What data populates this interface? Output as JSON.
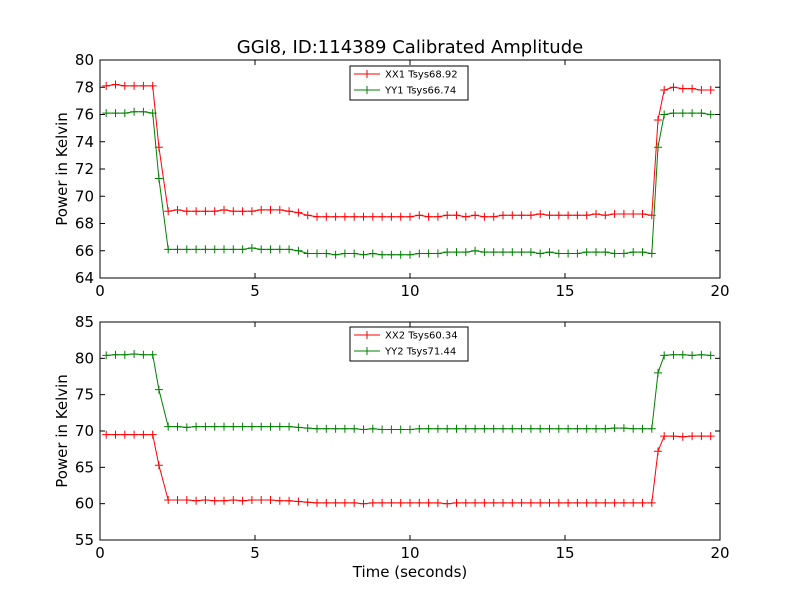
{
  "chart_data": [
    {
      "type": "line",
      "title": "GGl8, ID:114389 Calibrated Amplitude",
      "xlabel": "",
      "ylabel": "Power in Kelvin",
      "xlim": [
        0,
        20
      ],
      "ylim": [
        64,
        80
      ],
      "xticks": [
        "0",
        "5",
        "10",
        "15",
        "20"
      ],
      "yticks": [
        "64",
        "66",
        "68",
        "70",
        "72",
        "74",
        "76",
        "78",
        "80"
      ],
      "grid": false,
      "legend_position": "top-center",
      "x": [
        0.2,
        0.5,
        0.8,
        1.1,
        1.4,
        1.7,
        1.9,
        2.2,
        2.5,
        2.8,
        3.1,
        3.4,
        3.7,
        4.0,
        4.3,
        4.6,
        4.9,
        5.2,
        5.5,
        5.8,
        6.1,
        6.4,
        6.7,
        7.0,
        7.3,
        7.6,
        7.9,
        8.2,
        8.5,
        8.8,
        9.1,
        9.4,
        9.7,
        10.0,
        10.3,
        10.6,
        10.9,
        11.2,
        11.5,
        11.8,
        12.1,
        12.4,
        12.7,
        13.0,
        13.3,
        13.6,
        13.9,
        14.2,
        14.5,
        14.8,
        15.1,
        15.4,
        15.7,
        16.0,
        16.3,
        16.6,
        16.9,
        17.2,
        17.5,
        17.8,
        18.0,
        18.2,
        18.5,
        18.8,
        19.1,
        19.4,
        19.7
      ],
      "series": [
        {
          "name": "XX1 Tsys68.92",
          "color": "#ff0000",
          "values": [
            78.1,
            78.2,
            78.1,
            78.1,
            78.1,
            78.1,
            73.6,
            68.9,
            69.0,
            68.9,
            68.9,
            68.9,
            68.9,
            69.0,
            68.9,
            68.9,
            68.9,
            69.0,
            69.0,
            69.0,
            68.9,
            68.8,
            68.6,
            68.5,
            68.5,
            68.5,
            68.5,
            68.5,
            68.5,
            68.5,
            68.5,
            68.5,
            68.5,
            68.5,
            68.6,
            68.5,
            68.5,
            68.6,
            68.6,
            68.5,
            68.6,
            68.5,
            68.5,
            68.6,
            68.6,
            68.6,
            68.6,
            68.7,
            68.6,
            68.6,
            68.6,
            68.6,
            68.6,
            68.7,
            68.6,
            68.7,
            68.7,
            68.7,
            68.7,
            68.6,
            75.6,
            77.8,
            78.0,
            77.9,
            77.9,
            77.8,
            77.8
          ]
        },
        {
          "name": "YY1 Tsys66.74",
          "color": "#008000",
          "values": [
            76.1,
            76.1,
            76.1,
            76.2,
            76.2,
            76.1,
            71.3,
            66.1,
            66.1,
            66.1,
            66.1,
            66.1,
            66.1,
            66.1,
            66.1,
            66.1,
            66.2,
            66.1,
            66.1,
            66.1,
            66.1,
            66.0,
            65.8,
            65.8,
            65.8,
            65.7,
            65.8,
            65.8,
            65.7,
            65.8,
            65.7,
            65.7,
            65.7,
            65.7,
            65.8,
            65.8,
            65.8,
            65.9,
            65.9,
            65.9,
            66.0,
            65.9,
            65.9,
            65.9,
            65.9,
            65.9,
            65.9,
            65.8,
            65.9,
            65.8,
            65.8,
            65.8,
            65.9,
            65.9,
            65.9,
            65.8,
            65.8,
            65.9,
            65.9,
            65.8,
            73.6,
            76.0,
            76.1,
            76.1,
            76.1,
            76.1,
            76.0
          ]
        }
      ]
    },
    {
      "type": "line",
      "title": "",
      "xlabel": "Time (seconds)",
      "ylabel": "Power in Kelvin",
      "xlim": [
        0,
        20
      ],
      "ylim": [
        55,
        85
      ],
      "xticks": [
        "0",
        "5",
        "10",
        "15",
        "20"
      ],
      "yticks": [
        "55",
        "60",
        "65",
        "70",
        "75",
        "80",
        "85"
      ],
      "grid": false,
      "legend_position": "top-center",
      "x": [
        0.2,
        0.5,
        0.8,
        1.1,
        1.4,
        1.7,
        1.9,
        2.2,
        2.5,
        2.8,
        3.1,
        3.4,
        3.7,
        4.0,
        4.3,
        4.6,
        4.9,
        5.2,
        5.5,
        5.8,
        6.1,
        6.4,
        6.7,
        7.0,
        7.3,
        7.6,
        7.9,
        8.2,
        8.5,
        8.8,
        9.1,
        9.4,
        9.7,
        10.0,
        10.3,
        10.6,
        10.9,
        11.2,
        11.5,
        11.8,
        12.1,
        12.4,
        12.7,
        13.0,
        13.3,
        13.6,
        13.9,
        14.2,
        14.5,
        14.8,
        15.1,
        15.4,
        15.7,
        16.0,
        16.3,
        16.6,
        16.9,
        17.2,
        17.5,
        17.8,
        18.0,
        18.2,
        18.5,
        18.8,
        19.1,
        19.4,
        19.7
      ],
      "series": [
        {
          "name": "XX2 Tsys60.34",
          "color": "#ff0000",
          "values": [
            69.5,
            69.5,
            69.5,
            69.5,
            69.5,
            69.5,
            65.3,
            60.5,
            60.5,
            60.5,
            60.4,
            60.5,
            60.4,
            60.4,
            60.5,
            60.4,
            60.5,
            60.5,
            60.5,
            60.4,
            60.4,
            60.3,
            60.2,
            60.1,
            60.1,
            60.1,
            60.1,
            60.1,
            60.0,
            60.1,
            60.1,
            60.1,
            60.1,
            60.1,
            60.1,
            60.1,
            60.1,
            60.0,
            60.1,
            60.1,
            60.1,
            60.1,
            60.1,
            60.1,
            60.1,
            60.1,
            60.1,
            60.1,
            60.1,
            60.1,
            60.1,
            60.1,
            60.1,
            60.1,
            60.1,
            60.1,
            60.1,
            60.1,
            60.1,
            60.1,
            67.2,
            69.3,
            69.3,
            69.2,
            69.3,
            69.3,
            69.3
          ]
        },
        {
          "name": "YY2 Tsys71.44",
          "color": "#008000",
          "values": [
            80.4,
            80.5,
            80.5,
            80.6,
            80.5,
            80.5,
            75.7,
            70.6,
            70.6,
            70.5,
            70.6,
            70.6,
            70.6,
            70.6,
            70.6,
            70.6,
            70.6,
            70.6,
            70.6,
            70.6,
            70.6,
            70.5,
            70.4,
            70.3,
            70.3,
            70.3,
            70.3,
            70.3,
            70.2,
            70.3,
            70.2,
            70.2,
            70.2,
            70.2,
            70.3,
            70.3,
            70.3,
            70.3,
            70.3,
            70.3,
            70.3,
            70.3,
            70.3,
            70.3,
            70.3,
            70.3,
            70.3,
            70.3,
            70.3,
            70.3,
            70.3,
            70.3,
            70.3,
            70.3,
            70.3,
            70.4,
            70.4,
            70.3,
            70.3,
            70.3,
            78.0,
            80.4,
            80.5,
            80.5,
            80.4,
            80.5,
            80.4
          ]
        }
      ]
    }
  ]
}
